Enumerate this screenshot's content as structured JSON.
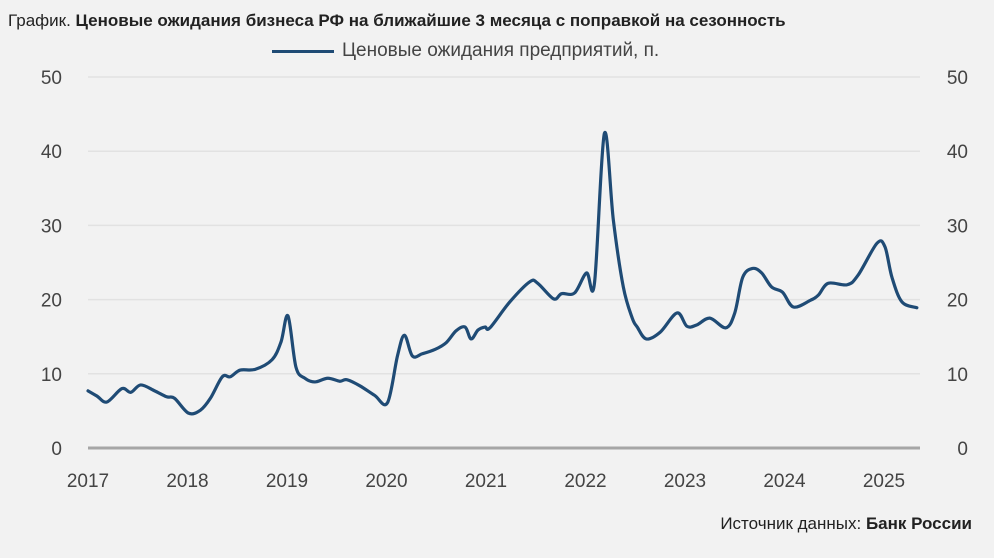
{
  "title": {
    "prefix": "График.",
    "main": "Ценовые ожидания бизнеса РФ на ближайшие 3 месяца с поправкой на сезонность"
  },
  "source": {
    "label": "Источник данных:",
    "value": "Банк России"
  },
  "chart_data": {
    "type": "line",
    "title": "Ценовые ожидания бизнеса РФ на ближайшие 3 месяца с поправкой на сезонность",
    "xlabel": "",
    "ylabel": "",
    "ylim": [
      0,
      50
    ],
    "xlim": [
      2017,
      2025.4
    ],
    "yticks": [
      "0",
      "10",
      "20",
      "30",
      "40",
      "50"
    ],
    "xticks": [
      "2017",
      "2018",
      "2019",
      "2020",
      "2021",
      "2022",
      "2023",
      "2024",
      "2025"
    ],
    "grid": true,
    "legend_position": "top-center",
    "series": [
      {
        "name": "Ценовые ожидания предприятий, п.",
        "color": "#1f4b75",
        "x": [
          2017.0,
          2017.09,
          2017.19,
          2017.34,
          2017.43,
          2017.53,
          2017.67,
          2017.79,
          2017.87,
          2018.01,
          2018.13,
          2018.23,
          2018.35,
          2018.43,
          2018.53,
          2018.68,
          2018.85,
          2018.94,
          2019.01,
          2019.09,
          2019.18,
          2019.28,
          2019.41,
          2019.53,
          2019.6,
          2019.73,
          2019.88,
          2020.01,
          2020.11,
          2020.18,
          2020.26,
          2020.36,
          2020.49,
          2020.6,
          2020.7,
          2020.79,
          2020.85,
          2020.92,
          2020.99,
          2021.04,
          2021.24,
          2021.44,
          2021.52,
          2021.68,
          2021.76,
          2021.89,
          2022.01,
          2022.09,
          2022.19,
          2022.28,
          2022.38,
          2022.47,
          2022.52,
          2022.61,
          2022.75,
          2022.92,
          2023.02,
          2023.12,
          2023.25,
          2023.41,
          2023.5,
          2023.58,
          2023.68,
          2023.77,
          2023.87,
          2023.98,
          2024.09,
          2024.26,
          2024.34,
          2024.44,
          2024.63,
          2024.74,
          2024.93,
          2025.01,
          2025.08,
          2025.18,
          2025.33
        ],
        "values": [
          7.7,
          7.0,
          6.2,
          8.0,
          7.5,
          8.5,
          7.7,
          6.9,
          6.7,
          4.7,
          5.1,
          6.7,
          9.6,
          9.6,
          10.5,
          10.6,
          11.9,
          14.3,
          17.8,
          10.9,
          9.4,
          8.9,
          9.4,
          9.0,
          9.2,
          8.4,
          7.1,
          6.1,
          12.4,
          15.2,
          12.4,
          12.7,
          13.3,
          14.2,
          15.8,
          16.3,
          14.7,
          15.9,
          16.3,
          16.2,
          19.7,
          22.4,
          22.2,
          20.1,
          20.8,
          20.9,
          23.6,
          22.2,
          42.4,
          30.7,
          21.7,
          17.5,
          16.3,
          14.7,
          15.6,
          18.2,
          16.4,
          16.6,
          17.5,
          16.2,
          18.2,
          23.0,
          24.2,
          23.6,
          21.7,
          21.0,
          19.0,
          19.9,
          20.6,
          22.2,
          22.0,
          23.3,
          27.6,
          27.1,
          23.0,
          19.7,
          18.9
        ]
      }
    ]
  }
}
